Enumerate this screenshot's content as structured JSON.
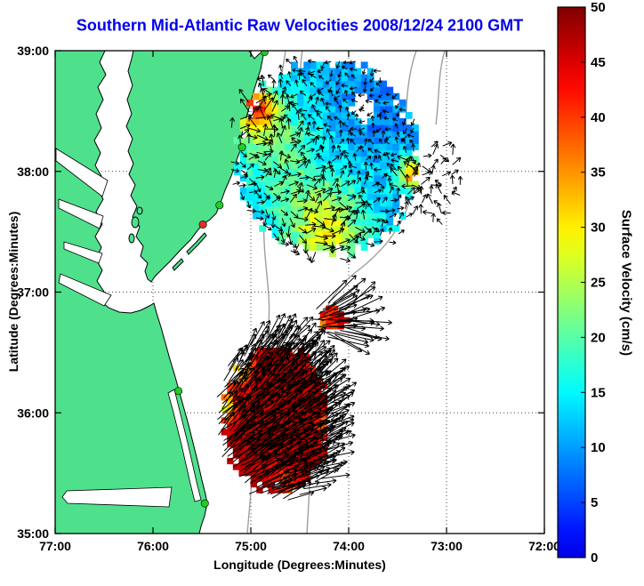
{
  "colors": {
    "title_blue": "#0000ee",
    "land_green": "#4fe08c",
    "ocean_white": "#ffffff",
    "coastline_black": "#000000",
    "bathymetry_gray": "#9e9e9e",
    "station_green": "#22cc22",
    "station_red": "#e03020",
    "arrow_black": "#000000",
    "grid_dot": "#444444"
  },
  "chart_data": {
    "type": "map-vector-field",
    "title": "Southern Mid-Atlantic Raw Velocities 2008/12/24 2100 GMT",
    "xlabel": "Longitude (Degrees:Minutes)",
    "ylabel": "Latitude (Degrees:Minutes)",
    "xlim": [
      -77,
      -72
    ],
    "ylim": [
      35,
      39
    ],
    "grid": "dotted",
    "x_ticks": [
      {
        "value": -77,
        "label": "77:00"
      },
      {
        "value": -76,
        "label": "76:00"
      },
      {
        "value": -75,
        "label": "75:00"
      },
      {
        "value": -74,
        "label": "74:00"
      },
      {
        "value": -73,
        "label": "73:00"
      },
      {
        "value": -72,
        "label": "72:00"
      }
    ],
    "y_ticks": [
      {
        "value": 35,
        "label": "35:00"
      },
      {
        "value": 36,
        "label": "36:00"
      },
      {
        "value": 37,
        "label": "37:00"
      },
      {
        "value": 38,
        "label": "38:00"
      },
      {
        "value": 39,
        "label": "39:00"
      }
    ],
    "colorbar": {
      "label": "Surface Velocity (cm/s)",
      "min": 0,
      "max": 50,
      "ticks": [
        0,
        5,
        10,
        15,
        20,
        25,
        30,
        35,
        40,
        45,
        50
      ],
      "colormap": "jet"
    },
    "stations": [
      {
        "name": "station-north",
        "lon": -74.86,
        "lat": 38.99,
        "color": "green"
      },
      {
        "name": "station-ocean-city",
        "lon": -75.09,
        "lat": 38.2,
        "color": "green"
      },
      {
        "name": "station-assateague",
        "lon": -75.32,
        "lat": 37.72,
        "color": "green"
      },
      {
        "name": "station-wachapreague",
        "lon": -75.49,
        "lat": 37.56,
        "color": "red"
      },
      {
        "name": "station-duck",
        "lon": -75.74,
        "lat": 36.18,
        "color": "green"
      },
      {
        "name": "station-hatteras",
        "lon": -75.47,
        "lat": 35.25,
        "color": "green"
      }
    ],
    "vector_fields": [
      {
        "name": "northern-field",
        "center": [
          -74.22,
          38.12
        ],
        "rx": 0.92,
        "ry": 0.8,
        "draw_cells": true,
        "cell_deg": 0.065,
        "base_speed": 12,
        "noise": 3,
        "bumps": [
          {
            "u": -0.8,
            "v": -0.52,
            "amp": 24,
            "sig": 0.02
          },
          {
            "u": -0.7,
            "v": -0.3,
            "amp": 10,
            "sig": 0.08
          },
          {
            "u": 0.02,
            "v": 0.8,
            "amp": 14,
            "sig": 0.1
          },
          {
            "u": 0.95,
            "v": 0.18,
            "amp": 22,
            "sig": 0.015
          },
          {
            "u": -0.35,
            "v": 0.3,
            "amp": 6,
            "sig": 0.18
          },
          {
            "u": 0.55,
            "v": -0.45,
            "amp": -4,
            "sig": 0.12
          }
        ],
        "holes": [
          {
            "u": 0.4,
            "v": -0.5,
            "r": 0.14
          }
        ],
        "arrow_step": 0.085,
        "arrow_extent": 1.06,
        "dir_base": 80,
        "dir_du": 70,
        "dir_dv": -120,
        "dir_jitter": 150,
        "len_base": 3,
        "len_per_speed": 0.4
      },
      {
        "name": "offshore-arrow-cluster",
        "center": [
          -73.15,
          37.9
        ],
        "rx": 0.3,
        "ry": 0.33,
        "draw_cells": false,
        "base_speed": 14,
        "noise": 4,
        "bumps": [],
        "holes": [],
        "arrow_step": 0.1,
        "arrow_extent": 1.0,
        "dir_base": 60,
        "dir_du": 50,
        "dir_dv": 90,
        "dir_jitter": 140,
        "len_base": 4,
        "len_per_speed": 0.5
      },
      {
        "name": "bay-mouth-jet",
        "center": [
          -74.17,
          36.77
        ],
        "rx": 0.15,
        "ry": 0.1,
        "draw_cells": true,
        "cell_deg": 0.06,
        "base_speed": 44,
        "noise": 4,
        "bumps": [
          {
            "u": -0.5,
            "v": 0.3,
            "amp": -12,
            "sig": 0.1
          }
        ],
        "holes": [],
        "arrow_step": 0.055,
        "arrow_extent": 1.35,
        "dir_base": 8,
        "dir_du": 0,
        "dir_dv": -25,
        "dir_jitter": 30,
        "len_base": 14,
        "len_per_speed": 0.75
      },
      {
        "name": "southern-field",
        "center": [
          -74.73,
          35.96
        ],
        "rx": 0.54,
        "ry": 0.6,
        "draw_cells": true,
        "cell_deg": 0.06,
        "base_speed": 47,
        "noise": 2,
        "bumps": [
          {
            "u": -0.7,
            "v": -0.7,
            "amp": -20,
            "sig": 0.03
          },
          {
            "u": -0.95,
            "v": -0.15,
            "amp": -19,
            "sig": 0.018
          },
          {
            "u": 0.8,
            "v": -0.85,
            "amp": -21,
            "sig": 0.02
          },
          {
            "u": 0.1,
            "v": 0.9,
            "amp": -7,
            "sig": 0.05
          },
          {
            "u": 0.95,
            "v": 0.1,
            "amp": -10,
            "sig": 0.02
          }
        ],
        "holes": [],
        "arrow_step": 0.055,
        "arrow_extent": 1.12,
        "dir_base": 38,
        "dir_du": -8,
        "dir_dv": -14,
        "dir_jitter": 26,
        "len_base": 6,
        "len_per_speed": 0.55
      }
    ]
  }
}
